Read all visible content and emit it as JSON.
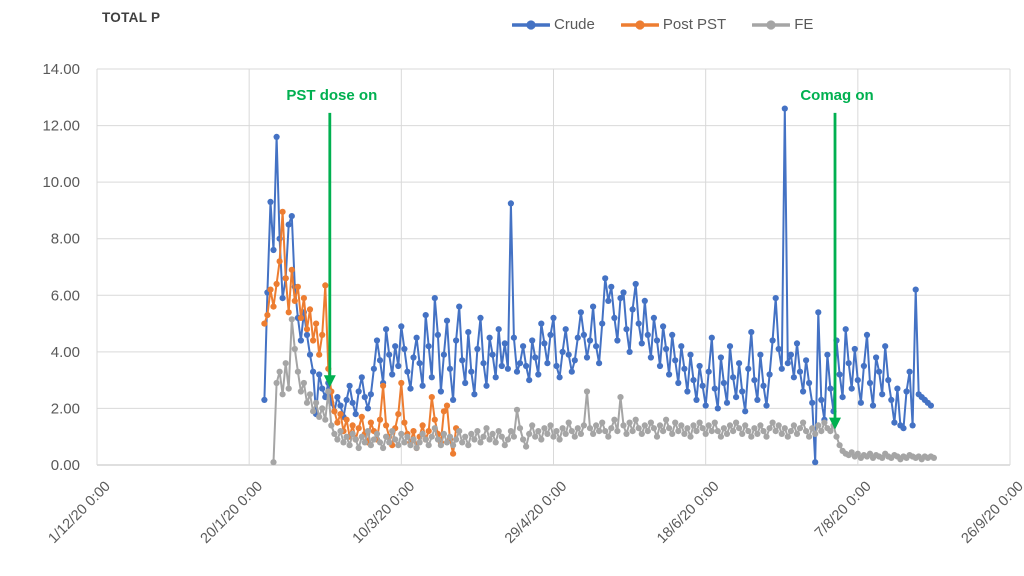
{
  "chart_data": {
    "type": "line",
    "title": "TOTAL P",
    "legend_position": "top",
    "grid": true,
    "colors": {
      "crude": "#4472C4",
      "post_pst": "#ED7D31",
      "fe": "#A5A5A5",
      "annotation_green": "#00B050",
      "gridline": "#D9D9D9",
      "axis_line": "#BFBFBF",
      "tick_text": "#595959",
      "title_text": "#3F3F3F"
    },
    "y_axis": {
      "min": 0,
      "max": 14,
      "step": 2,
      "tick_labels": [
        "0.00",
        "2.00",
        "4.00",
        "6.00",
        "8.00",
        "10.00",
        "12.00",
        "14.00"
      ]
    },
    "x_axis": {
      "range_days": [
        0,
        300
      ],
      "tick_days": [
        0,
        50,
        100,
        150,
        200,
        250,
        300
      ],
      "tick_labels": [
        "1/12/20 0:00",
        "20/1/20 0:00",
        "10/3/20 0:00",
        "29/4/20 0:00",
        "18/6/20 0:00",
        "7/8/20 0:00",
        "26/9/20 0:00"
      ]
    },
    "series": [
      {
        "name": "Crude",
        "color": "#4472C4",
        "start_day": 55,
        "values": [
          2.3,
          6.1,
          9.3,
          7.6,
          11.6,
          8.0,
          5.9,
          6.6,
          8.5,
          8.8,
          6.3,
          5.2,
          4.4,
          5.4,
          4.6,
          3.9,
          3.3,
          1.8,
          3.2,
          2.7,
          2.4,
          2.9,
          2.2,
          1.9,
          2.4,
          2.1,
          1.7,
          2.3,
          2.8,
          2.2,
          1.8,
          2.6,
          3.1,
          2.4,
          2.0,
          2.5,
          3.4,
          4.4,
          3.7,
          2.9,
          4.8,
          3.9,
          3.2,
          4.2,
          3.5,
          4.9,
          4.1,
          3.3,
          2.7,
          3.8,
          4.5,
          3.6,
          2.8,
          5.3,
          4.2,
          3.1,
          5.9,
          4.6,
          2.6,
          3.9,
          5.1,
          3.4,
          2.3,
          4.4,
          5.6,
          3.7,
          2.9,
          4.7,
          3.3,
          2.5,
          4.1,
          5.2,
          3.6,
          2.8,
          4.5,
          3.9,
          3.1,
          4.8,
          3.5,
          4.3,
          3.4,
          9.25,
          4.5,
          3.3,
          3.6,
          4.2,
          3.5,
          3.0,
          4.4,
          3.8,
          3.2,
          5.0,
          4.3,
          3.6,
          4.6,
          5.2,
          3.5,
          3.1,
          4.0,
          4.8,
          3.9,
          3.3,
          3.7,
          4.5,
          5.4,
          4.6,
          3.8,
          4.4,
          5.6,
          4.2,
          3.6,
          5.0,
          6.6,
          5.8,
          6.3,
          5.2,
          4.4,
          5.9,
          6.1,
          4.8,
          4.0,
          5.5,
          6.4,
          5.0,
          4.3,
          5.8,
          4.6,
          3.8,
          5.2,
          4.4,
          3.5,
          4.9,
          4.1,
          3.2,
          4.6,
          3.7,
          2.9,
          4.2,
          3.4,
          2.6,
          3.9,
          3.0,
          2.3,
          3.5,
          2.8,
          2.1,
          3.3,
          4.5,
          2.7,
          2.0,
          3.8,
          2.9,
          2.2,
          4.2,
          3.1,
          2.4,
          3.6,
          2.6,
          1.9,
          3.4,
          4.7,
          3.0,
          2.3,
          3.9,
          2.8,
          2.1,
          3.2,
          4.4,
          5.9,
          4.1,
          3.4,
          12.6,
          3.6,
          3.9,
          3.1,
          4.3,
          3.3,
          2.6,
          3.7,
          2.9,
          2.2,
          0.1,
          5.4,
          2.3,
          1.6,
          3.9,
          2.7,
          1.9,
          4.4,
          3.2,
          2.4,
          4.8,
          3.6,
          2.7,
          4.1,
          3.0,
          2.2,
          3.5,
          4.6,
          2.9,
          2.1,
          3.8,
          3.3,
          2.5,
          4.2,
          3.0,
          2.3,
          1.5,
          2.7,
          1.4,
          1.3,
          2.6,
          3.3,
          1.4,
          6.2,
          2.5,
          2.4,
          2.3,
          2.2,
          2.1
        ]
      },
      {
        "name": "Post PST",
        "color": "#ED7D31",
        "start_day": 55,
        "values": [
          5.0,
          5.3,
          6.2,
          5.6,
          6.4,
          7.2,
          8.95,
          6.6,
          5.4,
          6.9,
          5.8,
          6.3,
          5.2,
          5.9,
          4.8,
          5.5,
          4.4,
          5.0,
          3.9,
          4.6,
          6.35,
          3.4,
          2.6,
          1.9,
          1.5,
          1.8,
          1.2,
          1.6,
          1.0,
          1.4,
          0.9,
          1.3,
          1.7,
          1.1,
          0.8,
          1.5,
          1.2,
          0.9,
          1.6,
          2.8,
          1.4,
          1.0,
          0.7,
          1.3,
          1.8,
          2.9,
          1.5,
          1.1,
          0.8,
          1.2,
          0.6,
          1.0,
          1.4,
          0.9,
          1.2,
          2.4,
          1.6,
          1.1,
          0.8,
          1.9,
          2.1,
          0.9,
          0.4,
          1.3
        ]
      },
      {
        "name": "FE",
        "color": "#A5A5A5",
        "start_day": 58,
        "values": [
          0.1,
          2.9,
          3.3,
          2.5,
          3.6,
          2.7,
          5.15,
          4.1,
          3.3,
          2.6,
          2.9,
          2.2,
          2.5,
          1.9,
          2.2,
          1.7,
          2.0,
          1.6,
          2.6,
          1.4,
          1.1,
          0.9,
          1.2,
          0.8,
          1.0,
          0.7,
          1.1,
          0.9,
          0.6,
          1.0,
          0.8,
          1.2,
          0.7,
          0.9,
          1.1,
          0.8,
          0.6,
          1.0,
          0.8,
          1.2,
          0.9,
          0.7,
          1.1,
          0.8,
          1.0,
          0.7,
          0.9,
          0.6,
          0.8,
          1.1,
          0.9,
          0.7,
          1.0,
          1.3,
          0.9,
          0.7,
          1.1,
          0.8,
          1.0,
          0.7,
          0.9,
          1.2,
          0.8,
          1.0,
          0.7,
          1.1,
          0.9,
          1.2,
          0.8,
          1.0,
          1.3,
          0.9,
          1.1,
          0.8,
          1.2,
          1.0,
          0.7,
          0.9,
          1.2,
          1.0,
          1.95,
          1.3,
          0.9,
          0.65,
          1.1,
          1.4,
          1.0,
          1.2,
          0.9,
          1.3,
          1.1,
          1.4,
          1.0,
          1.2,
          0.9,
          1.3,
          1.1,
          1.5,
          1.2,
          1.0,
          1.3,
          1.1,
          1.4,
          2.6,
          1.3,
          1.1,
          1.4,
          1.2,
          1.5,
          1.2,
          1.0,
          1.3,
          1.6,
          1.2,
          2.4,
          1.4,
          1.1,
          1.5,
          1.2,
          1.6,
          1.3,
          1.1,
          1.4,
          1.2,
          1.5,
          1.3,
          1.0,
          1.4,
          1.2,
          1.6,
          1.3,
          1.1,
          1.5,
          1.2,
          1.4,
          1.1,
          1.3,
          1.0,
          1.4,
          1.2,
          1.5,
          1.3,
          1.1,
          1.4,
          1.2,
          1.5,
          1.2,
          1.0,
          1.3,
          1.1,
          1.4,
          1.2,
          1.5,
          1.3,
          1.1,
          1.4,
          1.2,
          1.0,
          1.3,
          1.1,
          1.4,
          1.2,
          1.0,
          1.3,
          1.5,
          1.2,
          1.4,
          1.1,
          1.3,
          1.0,
          1.2,
          1.4,
          1.1,
          1.3,
          1.5,
          1.2,
          1.0,
          1.3,
          1.1,
          1.4,
          1.2,
          1.5,
          1.3,
          1.2,
          1.4,
          1.0,
          0.7,
          0.5,
          0.4,
          0.35,
          0.45,
          0.3,
          0.4,
          0.25,
          0.35,
          0.3,
          0.4,
          0.25,
          0.35,
          0.3,
          0.25,
          0.4,
          0.3,
          0.25,
          0.35,
          0.3,
          0.2,
          0.3,
          0.25,
          0.35,
          0.3,
          0.25,
          0.3,
          0.2,
          0.3,
          0.25,
          0.3,
          0.25
        ]
      }
    ],
    "annotations": [
      {
        "label": "PST dose on",
        "day": 76.5,
        "arrow_from_value": 12.45,
        "arrow_to_value": 2.75,
        "color": "#00B050"
      },
      {
        "label": "Comag on",
        "day": 242.5,
        "arrow_from_value": 12.45,
        "arrow_to_value": 1.25,
        "color": "#00B050"
      }
    ]
  }
}
